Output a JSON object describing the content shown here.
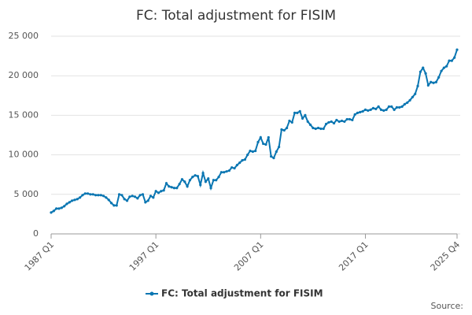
{
  "chart_data": {
    "type": "line",
    "title": "FC: Total adjustment for FISIM",
    "categories": [
      "1987 Q1",
      null,
      null,
      null,
      null,
      null,
      null,
      null,
      null,
      null,
      null,
      null,
      null,
      null,
      null,
      null,
      null,
      null,
      null,
      null,
      null,
      null,
      null,
      null,
      null,
      null,
      null,
      null,
      null,
      null,
      null,
      null,
      null,
      null,
      null,
      null,
      null,
      null,
      null,
      null,
      "1997 Q1",
      null,
      null,
      null,
      null,
      null,
      null,
      null,
      null,
      null,
      null,
      null,
      null,
      null,
      null,
      null,
      null,
      null,
      null,
      null,
      null,
      null,
      null,
      null,
      null,
      null,
      null,
      null,
      null,
      null,
      null,
      null,
      null,
      null,
      null,
      null,
      null,
      null,
      null,
      null,
      "2007 Q1",
      null,
      null,
      null,
      null,
      null,
      null,
      null,
      null,
      null,
      null,
      null,
      null,
      null,
      null,
      null,
      null,
      null,
      null,
      null,
      null,
      null,
      null,
      null,
      null,
      null,
      null,
      null,
      null,
      null,
      null,
      null,
      null,
      null,
      null,
      null,
      null,
      null,
      null,
      null,
      "2017 Q1",
      null,
      null,
      null,
      null,
      null,
      null,
      null,
      null,
      null,
      null,
      null,
      null,
      null,
      null,
      null,
      null,
      null,
      null,
      null,
      null,
      null,
      null,
      null,
      null,
      null,
      null,
      null,
      null,
      null,
      null,
      null,
      null,
      null,
      null,
      "2025 Q4"
    ],
    "series": [
      {
        "name": "FC: Total adjustment for FISIM",
        "color": "#0a76b2",
        "values": [
          2700,
          2900,
          3200,
          3200,
          3300,
          3500,
          3800,
          4000,
          4200,
          4300,
          4400,
          4600,
          4900,
          5100,
          5100,
          5000,
          5000,
          4900,
          4900,
          4900,
          4800,
          4600,
          4300,
          3900,
          3600,
          3600,
          5000,
          4900,
          4400,
          4200,
          4700,
          4800,
          4700,
          4500,
          4900,
          5000,
          4000,
          4200,
          4800,
          4600,
          5400,
          5200,
          5400,
          5500,
          6400,
          6000,
          5900,
          5800,
          5800,
          6300,
          6900,
          6600,
          6000,
          6800,
          7200,
          7400,
          7300,
          6200,
          7700,
          6600,
          7000,
          5800,
          6800,
          6800,
          7200,
          7800,
          7800,
          7900,
          8000,
          8400,
          8300,
          8700,
          9000,
          9300,
          9400,
          10000,
          10500,
          10400,
          10500,
          11600,
          12200,
          11400,
          11300,
          12200,
          9800,
          9600,
          10400,
          11000,
          13200,
          13100,
          13400,
          14300,
          14100,
          15300,
          15300,
          15500,
          14600,
          15000,
          14200,
          13800,
          13400,
          13300,
          13400,
          13300,
          13300,
          13900,
          14100,
          14200,
          14000,
          14400,
          14200,
          14300,
          14200,
          14500,
          14500,
          14400,
          15100,
          15300,
          15400,
          15500,
          15700,
          15600,
          15700,
          15900,
          15800,
          16100,
          15700,
          15600,
          15700,
          16100,
          16100,
          15700,
          16000,
          16000,
          16100,
          16400,
          16600,
          16900,
          17300,
          17700,
          18700,
          20500,
          21000,
          20300,
          18800,
          19200,
          19100,
          19200,
          19800,
          20600,
          21000,
          21200,
          21900,
          21900,
          22300,
          23300
        ]
      }
    ],
    "ylim": [
      0,
      25000
    ],
    "yticks": [
      0,
      {
        "value": 5000,
        "label": "5 000"
      },
      {
        "value": 10000,
        "label": "10 000"
      },
      {
        "value": 15000,
        "label": "15 000"
      },
      {
        "value": 20000,
        "label": "20 000"
      },
      {
        "value": 25000,
        "label": "25 000"
      }
    ],
    "grid": true,
    "legend": "bottom",
    "source": "Source:"
  }
}
